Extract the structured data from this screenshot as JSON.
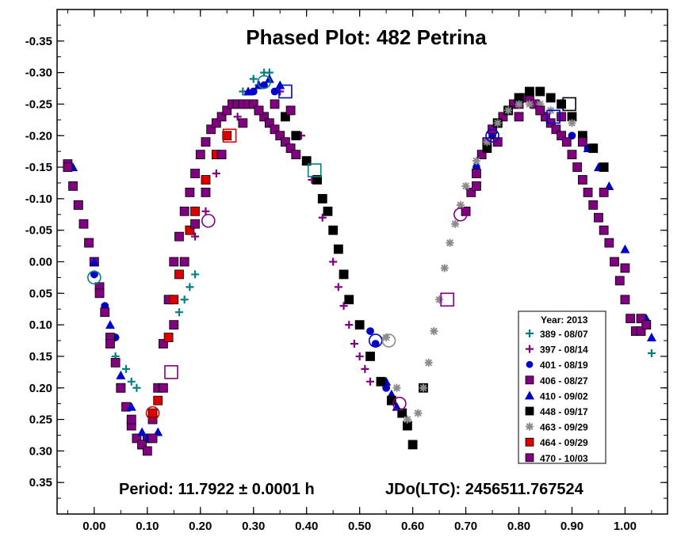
{
  "chart_data": {
    "type": "scatter",
    "title": "Phased Plot: 482 Petrina",
    "xlabel": "",
    "ylabel": "",
    "xlim": [
      -0.07,
      1.08
    ],
    "ylim": [
      0.4,
      -0.4
    ],
    "y_inverted": true,
    "x_ticks": [
      "0.00",
      "0.10",
      "0.20",
      "0.30",
      "0.40",
      "0.50",
      "0.60",
      "0.70",
      "0.80",
      "0.90",
      "1.00"
    ],
    "y_ticks": [
      "-0.35",
      "-0.30",
      "-0.25",
      "-0.20",
      "-0.15",
      "-0.10",
      "-0.05",
      "0.00",
      "0.05",
      "0.10",
      "0.15",
      "0.20",
      "0.25",
      "0.30",
      "0.35"
    ],
    "grid": false,
    "legend_position": "bottom-right",
    "legend_title": "Year: 2013",
    "annotations": {
      "period": "Period: 11.7922 ± 0.0001 h",
      "epoch": "JDo(LTC): 2456511.767524"
    },
    "series": [
      {
        "name": "389 - 08/07",
        "marker": "plus",
        "color": "#008080",
        "x": [
          0.0,
          0.04,
          0.06,
          0.07,
          0.08,
          0.16,
          0.17,
          0.18,
          0.19,
          0.28,
          0.3,
          0.32,
          0.33,
          1.05
        ],
        "y": [
          0.02,
          0.15,
          0.17,
          0.19,
          0.2,
          0.08,
          0.06,
          0.04,
          0.02,
          -0.27,
          -0.29,
          -0.3,
          -0.3,
          0.145
        ]
      },
      {
        "name": "397 - 08/14",
        "marker": "plus",
        "color": "#800080",
        "x": [
          0.19,
          0.21,
          0.23,
          0.25,
          0.27,
          0.29,
          0.31,
          0.35,
          0.37,
          0.39,
          0.41,
          0.43,
          0.45,
          0.46,
          0.47,
          0.48,
          0.49,
          0.5,
          0.51,
          0.52
        ],
        "y": [
          -0.04,
          -0.08,
          -0.14,
          -0.2,
          -0.23,
          -0.27,
          -0.28,
          -0.27,
          -0.24,
          -0.2,
          -0.13,
          -0.07,
          0.0,
          0.04,
          0.07,
          0.1,
          0.13,
          0.15,
          0.17,
          0.19
        ]
      },
      {
        "name": "401 - 08/19",
        "marker": "circle",
        "color": "#0000cc",
        "x": [
          0.0,
          0.02,
          0.04,
          0.28,
          0.3,
          0.32,
          0.34,
          0.52,
          0.53,
          0.55,
          0.72,
          0.75,
          0.9,
          0.93
        ],
        "y": [
          0.02,
          0.07,
          0.12,
          -0.25,
          -0.27,
          -0.28,
          -0.27,
          0.11,
          0.13,
          0.2,
          -0.15,
          -0.2,
          -0.2,
          -0.18
        ]
      },
      {
        "name": "406 - 08/27",
        "marker": "square",
        "color": "#800080",
        "x": [
          -0.05,
          -0.04,
          -0.03,
          -0.02,
          -0.01,
          0.0,
          0.01,
          0.02,
          0.03,
          0.04,
          0.05,
          0.06,
          0.07,
          0.08,
          0.09,
          0.1,
          0.11,
          0.12,
          0.13,
          0.14,
          0.15,
          0.16,
          0.17,
          0.18,
          0.19,
          0.2,
          0.21,
          0.22,
          0.23,
          0.24,
          0.25,
          0.26,
          0.27,
          0.28,
          0.29,
          0.3,
          0.31,
          0.32,
          0.33,
          0.34,
          0.35,
          0.36,
          0.37,
          0.38,
          0.7,
          0.71,
          0.72,
          0.73,
          0.74,
          0.75,
          0.76,
          0.77,
          0.78,
          0.79,
          0.8,
          0.81,
          0.82,
          0.83,
          0.84,
          0.85,
          0.86,
          0.87,
          0.88,
          0.89,
          0.9,
          0.91,
          0.92,
          0.93,
          0.94,
          0.95,
          0.96,
          0.97,
          0.98,
          0.99,
          1.0,
          1.01,
          1.02,
          1.03,
          1.04
        ],
        "y": [
          -0.155,
          -0.12,
          -0.09,
          -0.06,
          -0.03,
          0.0,
          0.04,
          0.08,
          0.12,
          0.16,
          0.2,
          0.23,
          0.26,
          0.28,
          0.29,
          0.28,
          0.25,
          0.2,
          0.13,
          0.06,
          0.0,
          -0.04,
          -0.08,
          -0.11,
          -0.14,
          -0.17,
          -0.19,
          -0.21,
          -0.22,
          -0.23,
          -0.24,
          -0.25,
          -0.25,
          -0.25,
          -0.25,
          -0.25,
          -0.24,
          -0.23,
          -0.22,
          -0.21,
          -0.2,
          -0.19,
          -0.18,
          -0.17,
          -0.08,
          -0.11,
          -0.14,
          -0.17,
          -0.19,
          -0.21,
          -0.22,
          -0.23,
          -0.24,
          -0.25,
          -0.25,
          -0.26,
          -0.26,
          -0.25,
          -0.24,
          -0.23,
          -0.22,
          -0.21,
          -0.2,
          -0.19,
          -0.17,
          -0.15,
          -0.13,
          -0.11,
          -0.09,
          -0.07,
          -0.05,
          -0.03,
          0.0,
          0.03,
          0.06,
          0.09,
          0.11,
          0.11,
          0.1
        ]
      },
      {
        "name": "410 - 09/02",
        "marker": "triangle",
        "color": "#0000cc",
        "x": [
          -0.04,
          0.0,
          0.03,
          0.05,
          0.07,
          0.09,
          0.1,
          0.11,
          0.12,
          0.29,
          0.31,
          0.33,
          0.35,
          0.55,
          0.56,
          0.57,
          0.58,
          0.93,
          0.95,
          0.97,
          1.0,
          1.04,
          1.05
        ],
        "y": [
          -0.15,
          0.0,
          0.1,
          0.18,
          0.23,
          0.27,
          0.28,
          0.28,
          0.27,
          -0.27,
          -0.28,
          -0.29,
          -0.28,
          0.19,
          0.21,
          0.23,
          0.24,
          -0.18,
          -0.15,
          -0.12,
          -0.02,
          0.09,
          0.12
        ]
      },
      {
        "name": "448 - 09/17",
        "marker": "square",
        "color": "#000000",
        "x": [
          0.36,
          0.38,
          0.4,
          0.42,
          0.43,
          0.44,
          0.45,
          0.46,
          0.47,
          0.48,
          0.5,
          0.52,
          0.54,
          0.56,
          0.58,
          0.59,
          0.6,
          0.62,
          0.74,
          0.76,
          0.78,
          0.8,
          0.82,
          0.84,
          0.86,
          0.88,
          0.9,
          0.92,
          0.94,
          0.96
        ],
        "y": [
          -0.23,
          -0.2,
          -0.16,
          -0.13,
          -0.1,
          -0.08,
          -0.05,
          -0.02,
          0.02,
          0.06,
          0.1,
          0.15,
          0.19,
          0.22,
          0.24,
          0.26,
          0.29,
          0.2,
          -0.18,
          -0.22,
          -0.24,
          -0.26,
          -0.27,
          -0.27,
          -0.26,
          -0.25,
          -0.23,
          -0.2,
          -0.18,
          -0.15
        ]
      },
      {
        "name": "463 - 09/29",
        "marker": "asterisk",
        "color": "#8c8c8c",
        "x": [
          0.55,
          0.57,
          0.59,
          0.61,
          0.62,
          0.63,
          0.64,
          0.65,
          0.66,
          0.67,
          0.68,
          0.69,
          0.7,
          0.72,
          0.74,
          0.76,
          0.78,
          0.8,
          0.82,
          0.84,
          0.86,
          0.88,
          0.9
        ],
        "y": [
          0.12,
          0.2,
          0.25,
          0.24,
          0.2,
          0.16,
          0.11,
          0.06,
          0.01,
          -0.03,
          -0.06,
          -0.09,
          -0.12,
          -0.16,
          -0.19,
          -0.22,
          -0.24,
          -0.25,
          -0.25,
          -0.25,
          -0.24,
          -0.23,
          -0.22
        ]
      },
      {
        "name": "464 - 09/29",
        "marker": "square",
        "color": "#dd0000",
        "x": [
          0.11,
          0.12,
          0.14,
          0.15,
          0.16,
          0.18,
          0.19,
          0.21,
          0.23,
          0.25
        ],
        "y": [
          0.24,
          0.22,
          0.12,
          0.06,
          0.02,
          -0.05,
          -0.08,
          -0.13,
          -0.17,
          -0.2
        ]
      },
      {
        "name": "470 - 10/03",
        "marker": "square",
        "color": "#800080",
        "x": [
          -0.05,
          -0.03,
          -0.01,
          0.01,
          0.03,
          0.05,
          0.07,
          0.09,
          0.1,
          0.11,
          0.13,
          0.15,
          0.17,
          0.19,
          0.21,
          0.24,
          0.28,
          0.31,
          0.34,
          0.37,
          0.72,
          0.76,
          0.8,
          0.84,
          0.88,
          0.92,
          0.96,
          1.0,
          1.03,
          1.04
        ],
        "y": [
          -0.15,
          -0.09,
          -0.03,
          0.05,
          0.13,
          0.2,
          0.25,
          0.29,
          0.3,
          0.28,
          0.2,
          0.1,
          0.0,
          -0.06,
          -0.11,
          -0.17,
          -0.22,
          -0.24,
          -0.25,
          -0.24,
          -0.12,
          -0.19,
          -0.23,
          -0.24,
          -0.23,
          -0.19,
          -0.11,
          0.01,
          0.09,
          0.1
        ]
      }
    ],
    "open_markers": [
      {
        "x": 0.0,
        "y": 0.025,
        "shape": "circle",
        "color": "#008080"
      },
      {
        "x": 0.11,
        "y": 0.24,
        "shape": "circle",
        "color": "#dd0000"
      },
      {
        "x": 0.145,
        "y": 0.175,
        "shape": "square",
        "color": "#800080"
      },
      {
        "x": 0.215,
        "y": -0.065,
        "shape": "circle",
        "color": "#800080"
      },
      {
        "x": 0.255,
        "y": -0.2,
        "shape": "square",
        "color": "#dd0000"
      },
      {
        "x": 0.32,
        "y": -0.285,
        "shape": "circle",
        "color": "#008080"
      },
      {
        "x": 0.36,
        "y": -0.27,
        "shape": "square",
        "color": "#0000cc"
      },
      {
        "x": 0.415,
        "y": -0.145,
        "shape": "square",
        "color": "#008080"
      },
      {
        "x": 0.53,
        "y": 0.125,
        "shape": "circle",
        "color": "#0000cc"
      },
      {
        "x": 0.555,
        "y": 0.125,
        "shape": "circle",
        "color": "#8c8c8c"
      },
      {
        "x": 0.575,
        "y": 0.225,
        "shape": "circle",
        "color": "#800080"
      },
      {
        "x": 0.665,
        "y": 0.06,
        "shape": "square",
        "color": "#800080"
      },
      {
        "x": 0.69,
        "y": -0.075,
        "shape": "circle",
        "color": "#800080"
      },
      {
        "x": 0.75,
        "y": -0.2,
        "shape": "circle",
        "color": "#0000cc"
      },
      {
        "x": 0.865,
        "y": -0.23,
        "shape": "square",
        "color": "#0000cc"
      },
      {
        "x": 0.895,
        "y": -0.25,
        "shape": "square",
        "color": "#000000"
      }
    ]
  }
}
